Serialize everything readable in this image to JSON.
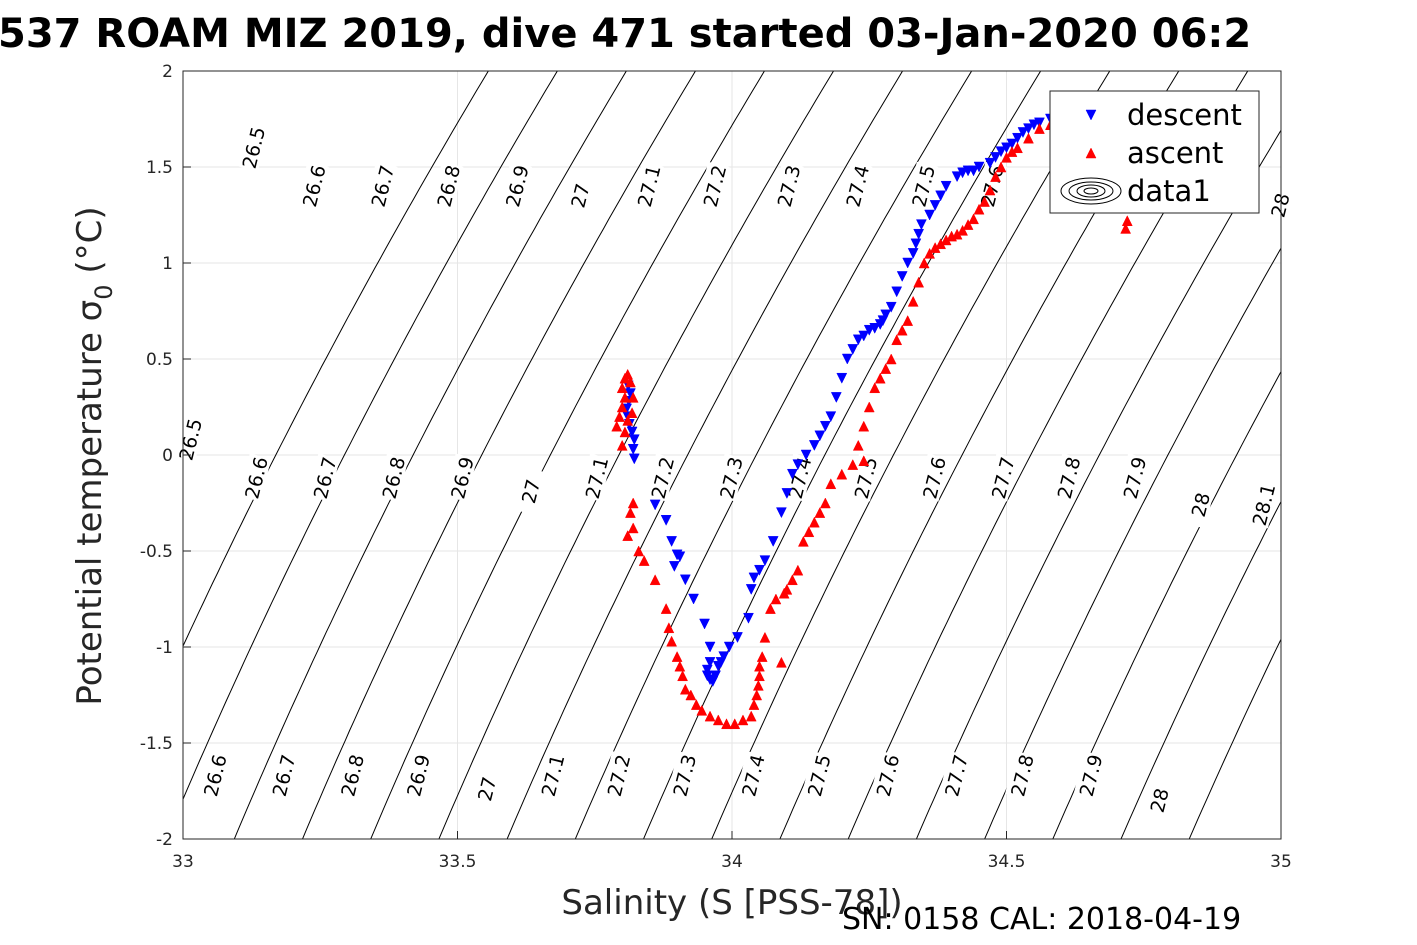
{
  "chart_data": {
    "type": "scatter",
    "title": "537 ROAM MIZ 2019, dive 471 started 03-Jan-2020 06:2",
    "xlabel": "Salinity (S [PSS-78])",
    "ylabel_main": "Potential temperature ",
    "ylabel_sigma": "σ",
    "ylabel_sub": "0",
    "ylabel_unit": " (°C)",
    "xlim": [
      33,
      35
    ],
    "ylim": [
      -2,
      2
    ],
    "xticks": [
      "33",
      "33.5",
      "34",
      "34.5",
      "35"
    ],
    "yticks": [
      "-2",
      "-1.5",
      "-1",
      "-0.5",
      "0",
      "0.5",
      "1",
      "1.5",
      "2"
    ],
    "grid": true,
    "legend": {
      "placement": "top-right",
      "entries": [
        "descent",
        "ascent",
        "data1"
      ]
    },
    "colors": {
      "descent": "#0000ff",
      "ascent": "#ff0000",
      "contour": "#000000"
    },
    "contour_levels": [
      "26.5",
      "26.6",
      "26.7",
      "26.8",
      "26.9",
      "27",
      "27.1",
      "27.2",
      "27.3",
      "27.4",
      "27.5",
      "27.6",
      "27.7",
      "27.8",
      "27.9",
      "28",
      "28.1"
    ],
    "contour_labels": [
      {
        "text": "26.5",
        "s": 33.13,
        "t": 1.6
      },
      {
        "text": "26.6",
        "s": 33.24,
        "t": 1.4
      },
      {
        "text": "26.7",
        "s": 33.365,
        "t": 1.4
      },
      {
        "text": "26.8",
        "s": 33.485,
        "t": 1.4
      },
      {
        "text": "26.9",
        "s": 33.61,
        "t": 1.4
      },
      {
        "text": "27",
        "s": 33.725,
        "t": 1.35
      },
      {
        "text": "27.1",
        "s": 33.85,
        "t": 1.4
      },
      {
        "text": "27.2",
        "s": 33.97,
        "t": 1.4
      },
      {
        "text": "27.3",
        "s": 34.105,
        "t": 1.4
      },
      {
        "text": "27.4",
        "s": 34.23,
        "t": 1.4
      },
      {
        "text": "27.5",
        "s": 34.35,
        "t": 1.4
      },
      {
        "text": "27.6",
        "s": 34.475,
        "t": 1.4
      },
      {
        "text": "28",
        "s": 35.0,
        "t": 1.3
      },
      {
        "text": "26.5",
        "s": 33.015,
        "t": 0.08
      },
      {
        "text": "26.6",
        "s": 33.135,
        "t": -0.12
      },
      {
        "text": "26.7",
        "s": 33.26,
        "t": -0.12
      },
      {
        "text": "26.8",
        "s": 33.385,
        "t": -0.12
      },
      {
        "text": "26.9",
        "s": 33.51,
        "t": -0.12
      },
      {
        "text": "27",
        "s": 33.635,
        "t": -0.19
      },
      {
        "text": "27.1",
        "s": 33.755,
        "t": -0.12
      },
      {
        "text": "27.2",
        "s": 33.875,
        "t": -0.12
      },
      {
        "text": "27.3",
        "s": 34.0,
        "t": -0.12
      },
      {
        "text": "27.4",
        "s": 34.125,
        "t": -0.12
      },
      {
        "text": "27.5",
        "s": 34.245,
        "t": -0.12
      },
      {
        "text": "27.6",
        "s": 34.37,
        "t": -0.12
      },
      {
        "text": "27.7",
        "s": 34.495,
        "t": -0.12
      },
      {
        "text": "27.8",
        "s": 34.615,
        "t": -0.12
      },
      {
        "text": "27.9",
        "s": 34.735,
        "t": -0.12
      },
      {
        "text": "28",
        "s": 34.855,
        "t": -0.26
      },
      {
        "text": "28.1",
        "s": 34.97,
        "t": -0.26
      },
      {
        "text": "26.6",
        "s": 33.06,
        "t": -1.67
      },
      {
        "text": "26.7",
        "s": 33.185,
        "t": -1.67
      },
      {
        "text": "26.8",
        "s": 33.31,
        "t": -1.67
      },
      {
        "text": "26.9",
        "s": 33.43,
        "t": -1.67
      },
      {
        "text": "27",
        "s": 33.555,
        "t": -1.74
      },
      {
        "text": "27.1",
        "s": 33.675,
        "t": -1.67
      },
      {
        "text": "27.2",
        "s": 33.795,
        "t": -1.67
      },
      {
        "text": "27.3",
        "s": 33.915,
        "t": -1.67
      },
      {
        "text": "27.4",
        "s": 34.04,
        "t": -1.67
      },
      {
        "text": "27.5",
        "s": 34.16,
        "t": -1.67
      },
      {
        "text": "27.6",
        "s": 34.285,
        "t": -1.67
      },
      {
        "text": "27.7",
        "s": 34.41,
        "t": -1.67
      },
      {
        "text": "27.8",
        "s": 34.53,
        "t": -1.67
      },
      {
        "text": "27.9",
        "s": 34.655,
        "t": -1.67
      },
      {
        "text": "28",
        "s": 34.78,
        "t": -1.8
      }
    ],
    "series": [
      {
        "name": "descent",
        "marker": "triangle-down",
        "points": [
          [
            33.811,
            0.36
          ],
          [
            33.815,
            0.32
          ],
          [
            33.812,
            0.28
          ],
          [
            33.808,
            0.24
          ],
          [
            33.81,
            0.2
          ],
          [
            33.813,
            0.16
          ],
          [
            33.818,
            0.12
          ],
          [
            33.822,
            0.08
          ],
          [
            33.82,
            0.03
          ],
          [
            33.822,
            -0.02
          ],
          [
            33.86,
            -0.26
          ],
          [
            33.88,
            -0.34
          ],
          [
            33.89,
            -0.45
          ],
          [
            33.9,
            -0.52
          ],
          [
            33.905,
            -0.53
          ],
          [
            33.895,
            -0.58
          ],
          [
            33.915,
            -0.65
          ],
          [
            33.93,
            -0.75
          ],
          [
            33.95,
            -0.88
          ],
          [
            33.96,
            -1.0
          ],
          [
            33.96,
            -1.08
          ],
          [
            33.955,
            -1.12
          ],
          [
            33.955,
            -1.15
          ],
          [
            33.96,
            -1.17
          ],
          [
            33.965,
            -1.18
          ],
          [
            33.97,
            -1.15
          ],
          [
            33.975,
            -1.1
          ],
          [
            33.98,
            -1.08
          ],
          [
            33.985,
            -1.05
          ],
          [
            33.995,
            -1.0
          ],
          [
            34.01,
            -0.95
          ],
          [
            34.03,
            -0.85
          ],
          [
            34.035,
            -0.7
          ],
          [
            34.04,
            -0.64
          ],
          [
            34.05,
            -0.6
          ],
          [
            34.06,
            -0.55
          ],
          [
            34.075,
            -0.45
          ],
          [
            34.09,
            -0.3
          ],
          [
            34.1,
            -0.2
          ],
          [
            34.11,
            -0.1
          ],
          [
            34.12,
            -0.05
          ],
          [
            34.135,
            0.0
          ],
          [
            34.15,
            0.05
          ],
          [
            34.16,
            0.1
          ],
          [
            34.17,
            0.15
          ],
          [
            34.18,
            0.2
          ],
          [
            34.19,
            0.3
          ],
          [
            34.2,
            0.4
          ],
          [
            34.21,
            0.5
          ],
          [
            34.22,
            0.55
          ],
          [
            34.23,
            0.6
          ],
          [
            34.24,
            0.62
          ],
          [
            34.25,
            0.65
          ],
          [
            34.26,
            0.66
          ],
          [
            34.27,
            0.68
          ],
          [
            34.275,
            0.7
          ],
          [
            34.28,
            0.73
          ],
          [
            34.29,
            0.77
          ],
          [
            34.3,
            0.85
          ],
          [
            34.31,
            0.93
          ],
          [
            34.32,
            1.0
          ],
          [
            34.33,
            1.05
          ],
          [
            34.335,
            1.1
          ],
          [
            34.34,
            1.15
          ],
          [
            34.345,
            1.2
          ],
          [
            34.36,
            1.25
          ],
          [
            34.37,
            1.3
          ],
          [
            34.38,
            1.35
          ],
          [
            34.39,
            1.4
          ],
          [
            34.41,
            1.45
          ],
          [
            34.42,
            1.47
          ],
          [
            34.43,
            1.48
          ],
          [
            34.44,
            1.48
          ],
          [
            34.45,
            1.5
          ],
          [
            34.47,
            1.52
          ],
          [
            34.48,
            1.55
          ],
          [
            34.49,
            1.58
          ],
          [
            34.5,
            1.6
          ],
          [
            34.51,
            1.62
          ],
          [
            34.52,
            1.65
          ],
          [
            34.53,
            1.68
          ],
          [
            34.54,
            1.7
          ],
          [
            34.55,
            1.72
          ],
          [
            34.56,
            1.73
          ],
          [
            34.58,
            1.75
          ],
          [
            34.6,
            1.76
          ],
          [
            34.62,
            1.77
          ],
          [
            34.64,
            1.78
          ]
        ]
      },
      {
        "name": "ascent",
        "marker": "triangle-up",
        "points": [
          [
            33.79,
            0.15
          ],
          [
            33.795,
            0.2
          ],
          [
            33.8,
            0.25
          ],
          [
            33.805,
            0.3
          ],
          [
            33.8,
            0.35
          ],
          [
            33.805,
            0.4
          ],
          [
            33.81,
            0.42
          ],
          [
            33.815,
            0.38
          ],
          [
            33.82,
            0.3
          ],
          [
            33.818,
            0.22
          ],
          [
            33.81,
            0.18
          ],
          [
            33.805,
            0.12
          ],
          [
            33.8,
            0.05
          ],
          [
            33.82,
            -0.25
          ],
          [
            33.815,
            -0.3
          ],
          [
            33.82,
            -0.38
          ],
          [
            33.81,
            -0.42
          ],
          [
            33.83,
            -0.5
          ],
          [
            33.84,
            -0.55
          ],
          [
            33.86,
            -0.65
          ],
          [
            33.88,
            -0.8
          ],
          [
            33.885,
            -0.9
          ],
          [
            33.89,
            -0.97
          ],
          [
            33.9,
            -1.05
          ],
          [
            33.905,
            -1.1
          ],
          [
            33.91,
            -1.15
          ],
          [
            33.915,
            -1.22
          ],
          [
            33.925,
            -1.25
          ],
          [
            33.935,
            -1.3
          ],
          [
            33.945,
            -1.33
          ],
          [
            33.96,
            -1.36
          ],
          [
            33.975,
            -1.38
          ],
          [
            33.99,
            -1.4
          ],
          [
            34.005,
            -1.4
          ],
          [
            34.02,
            -1.38
          ],
          [
            34.035,
            -1.36
          ],
          [
            34.04,
            -1.3
          ],
          [
            34.045,
            -1.25
          ],
          [
            34.048,
            -1.2
          ],
          [
            34.05,
            -1.15
          ],
          [
            34.05,
            -1.1
          ],
          [
            34.055,
            -1.05
          ],
          [
            34.06,
            -0.95
          ],
          [
            34.07,
            -0.8
          ],
          [
            34.08,
            -0.75
          ],
          [
            34.095,
            -0.72
          ],
          [
            34.1,
            -0.7
          ],
          [
            34.11,
            -0.65
          ],
          [
            34.12,
            -0.6
          ],
          [
            34.13,
            -0.45
          ],
          [
            34.14,
            -0.4
          ],
          [
            34.15,
            -0.35
          ],
          [
            34.16,
            -0.3
          ],
          [
            34.17,
            -0.25
          ],
          [
            34.18,
            -0.15
          ],
          [
            34.2,
            -0.1
          ],
          [
            34.22,
            -0.05
          ],
          [
            34.23,
            0.05
          ],
          [
            34.24,
            0.15
          ],
          [
            34.25,
            0.25
          ],
          [
            34.26,
            0.35
          ],
          [
            34.27,
            0.4
          ],
          [
            34.28,
            0.45
          ],
          [
            34.29,
            0.5
          ],
          [
            34.3,
            0.6
          ],
          [
            34.31,
            0.65
          ],
          [
            34.32,
            0.7
          ],
          [
            34.33,
            0.8
          ],
          [
            34.34,
            0.9
          ],
          [
            34.35,
            1.0
          ],
          [
            34.36,
            1.05
          ],
          [
            34.37,
            1.08
          ],
          [
            34.38,
            1.1
          ],
          [
            34.39,
            1.12
          ],
          [
            34.4,
            1.14
          ],
          [
            34.41,
            1.15
          ],
          [
            34.42,
            1.17
          ],
          [
            34.43,
            1.2
          ],
          [
            34.44,
            1.23
          ],
          [
            34.45,
            1.28
          ],
          [
            34.46,
            1.32
          ],
          [
            34.47,
            1.38
          ],
          [
            34.48,
            1.45
          ],
          [
            34.49,
            1.5
          ],
          [
            34.5,
            1.55
          ],
          [
            34.51,
            1.58
          ],
          [
            34.52,
            1.6
          ],
          [
            34.54,
            1.65
          ],
          [
            34.56,
            1.7
          ],
          [
            34.58,
            1.72
          ],
          [
            34.6,
            1.73
          ],
          [
            34.62,
            1.74
          ],
          [
            34.64,
            1.75
          ],
          [
            34.66,
            1.75
          ],
          [
            34.68,
            1.7
          ],
          [
            34.7,
            1.6
          ],
          [
            34.71,
            1.5
          ],
          [
            34.715,
            1.4
          ],
          [
            34.718,
            1.3
          ],
          [
            34.72,
            1.22
          ],
          [
            34.717,
            1.18
          ],
          [
            34.09,
            -1.08
          ],
          [
            34.24,
            -0.03
          ]
        ]
      }
    ],
    "footer": "SN: 0158  CAL: 2018-04-19"
  }
}
